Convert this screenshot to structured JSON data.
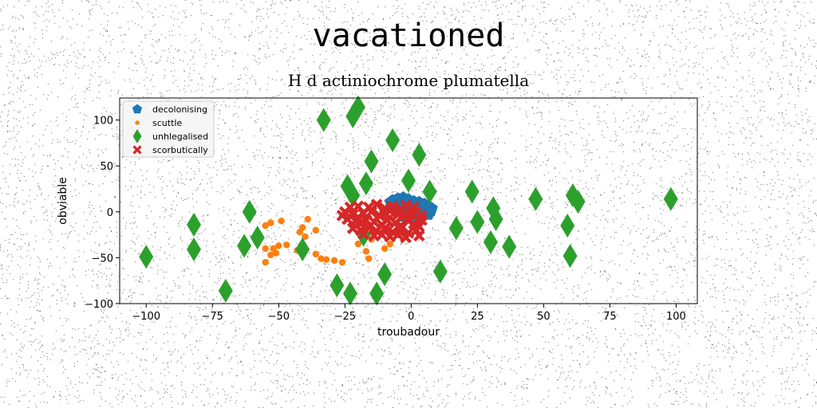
{
  "figure": {
    "suptitle": "vacationed"
  },
  "chart_data": {
    "type": "scatter",
    "title": "H d actiniochrome plumatella",
    "xlabel": "troubadour",
    "ylabel": "obviable",
    "xlim": [
      -110,
      108
    ],
    "ylim": [
      -100,
      124
    ],
    "xticks": [
      -100,
      -75,
      -50,
      -25,
      0,
      25,
      50,
      75,
      100
    ],
    "yticks": [
      -100,
      -50,
      0,
      50,
      100
    ],
    "xtick_labels": [
      "−100",
      "−75",
      "−50",
      "−25",
      "0",
      "25",
      "50",
      "75",
      "100"
    ],
    "ytick_labels": [
      "−100",
      "−50",
      "0",
      "50",
      "100"
    ],
    "grid": false,
    "legend_position": "top-left",
    "series": [
      {
        "name": "decolonising",
        "marker": "pentagon",
        "color": "#1f77b4",
        "points": [
          [
            -7,
            10
          ],
          [
            -5,
            12
          ],
          [
            -3,
            13
          ],
          [
            -1,
            11
          ],
          [
            1,
            9
          ],
          [
            3,
            8
          ],
          [
            5,
            6
          ],
          [
            7,
            3
          ],
          [
            -6,
            6
          ],
          [
            -3,
            8
          ],
          [
            0,
            6
          ],
          [
            2,
            4
          ],
          [
            4,
            2
          ],
          [
            6,
            -1
          ],
          [
            -4,
            2
          ],
          [
            -1,
            3
          ],
          [
            1,
            0
          ],
          [
            3,
            -2
          ],
          [
            -2,
            -3
          ],
          [
            0,
            -5
          ]
        ]
      },
      {
        "name": "scuttle",
        "marker": "circle",
        "color": "#ff7f0e",
        "points": [
          [
            -53,
            -12
          ],
          [
            -55,
            -15
          ],
          [
            -49,
            -10
          ],
          [
            -41,
            -17
          ],
          [
            -39,
            -8
          ],
          [
            -36,
            -20
          ],
          [
            -42,
            -22
          ],
          [
            -40,
            -27
          ],
          [
            -47,
            -36
          ],
          [
            -52,
            -40
          ],
          [
            -55,
            -40
          ],
          [
            -51,
            -45
          ],
          [
            -53,
            -47
          ],
          [
            -55,
            -55
          ],
          [
            -50,
            -37
          ],
          [
            -43,
            -42
          ],
          [
            -36,
            -46
          ],
          [
            -34,
            -51
          ],
          [
            -32,
            -52
          ],
          [
            -29,
            -53
          ],
          [
            -26,
            -55
          ],
          [
            -20,
            -35
          ],
          [
            -17,
            -43
          ],
          [
            -16,
            -51
          ],
          [
            -15,
            -30
          ],
          [
            -10,
            -40
          ],
          [
            -5,
            -25
          ],
          [
            -8,
            -35
          ]
        ]
      },
      {
        "name": "unhlegalised",
        "marker": "thin_diamond",
        "color": "#2ca02c",
        "points": [
          [
            -100,
            -49
          ],
          [
            -82,
            -14
          ],
          [
            -82,
            -41
          ],
          [
            -70,
            -86
          ],
          [
            -61,
            0
          ],
          [
            -63,
            -37
          ],
          [
            -58,
            -28
          ],
          [
            -41,
            -41
          ],
          [
            -33,
            100
          ],
          [
            -28,
            -80
          ],
          [
            -23,
            -89
          ],
          [
            -22,
            104
          ],
          [
            -20,
            114
          ],
          [
            -24,
            28
          ],
          [
            -22,
            18
          ],
          [
            -17,
            31
          ],
          [
            -15,
            55
          ],
          [
            -13,
            -89
          ],
          [
            -10,
            -68
          ],
          [
            -7,
            78
          ],
          [
            -1,
            34
          ],
          [
            3,
            62
          ],
          [
            7,
            22
          ],
          [
            11,
            -65
          ],
          [
            17,
            -18
          ],
          [
            23,
            22
          ],
          [
            25,
            -11
          ],
          [
            31,
            4
          ],
          [
            32,
            -8
          ],
          [
            30,
            -33
          ],
          [
            37,
            -38
          ],
          [
            47,
            14
          ],
          [
            59,
            -15
          ],
          [
            60,
            -48
          ],
          [
            61,
            18
          ],
          [
            63,
            11
          ],
          [
            98,
            14
          ],
          [
            -18,
            -25
          ]
        ]
      },
      {
        "name": "scorbutically",
        "marker": "X",
        "color": "#d62728",
        "points": [
          [
            -25,
            0
          ],
          [
            -22,
            -3
          ],
          [
            -20,
            -6
          ],
          [
            -18,
            -2
          ],
          [
            -15,
            0
          ],
          [
            -12,
            -4
          ],
          [
            -10,
            -1
          ],
          [
            -8,
            1
          ],
          [
            -5,
            -3
          ],
          [
            -3,
            -5
          ],
          [
            0,
            -2
          ],
          [
            2,
            0
          ],
          [
            4,
            -4
          ],
          [
            -24,
            -8
          ],
          [
            -21,
            -10
          ],
          [
            -19,
            -13
          ],
          [
            -17,
            -9
          ],
          [
            -14,
            -11
          ],
          [
            -11,
            -14
          ],
          [
            -9,
            -9
          ],
          [
            -6,
            -12
          ],
          [
            -4,
            -15
          ],
          [
            -1,
            -10
          ],
          [
            1,
            -13
          ],
          [
            3,
            -16
          ],
          [
            -26,
            -4
          ],
          [
            -23,
            5
          ],
          [
            -20,
            6
          ],
          [
            -16,
            5
          ],
          [
            -13,
            8
          ],
          [
            -10,
            4
          ],
          [
            -7,
            6
          ],
          [
            -4,
            3
          ],
          [
            -2,
            7
          ],
          [
            1,
            5
          ],
          [
            -22,
            -18
          ],
          [
            -19,
            -20
          ],
          [
            -16,
            -17
          ],
          [
            -13,
            -21
          ],
          [
            -10,
            -18
          ],
          [
            -7,
            -22
          ],
          [
            -4,
            -19
          ],
          [
            -1,
            -23
          ],
          [
            2,
            -20
          ],
          [
            -18,
            -24
          ],
          [
            -14,
            -26
          ],
          [
            -11,
            -25
          ],
          [
            -8,
            -27
          ],
          [
            -5,
            -25
          ],
          [
            -2,
            -28
          ],
          [
            3,
            -26
          ],
          [
            4,
            -9
          ]
        ]
      }
    ]
  }
}
